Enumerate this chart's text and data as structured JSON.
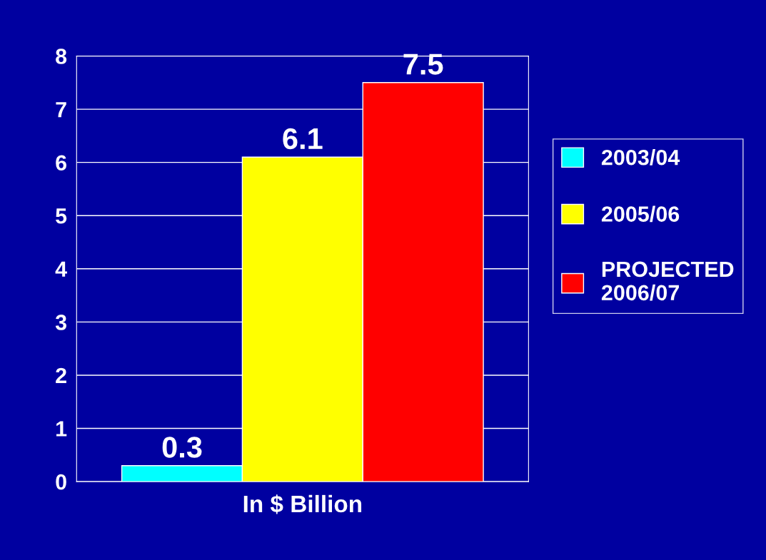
{
  "chart_data": {
    "type": "bar",
    "categories": [
      null
    ],
    "xlabel": "In $ Billion",
    "series": [
      {
        "name": "2003/04",
        "color": "#00ffff",
        "values": [
          0.3
        ]
      },
      {
        "name": "2005/06",
        "color": "#ffff00",
        "values": [
          6.1
        ]
      },
      {
        "name": "PROJECTED\n2006/07",
        "color": "#ff0000",
        "values": [
          7.5
        ]
      }
    ],
    "ylim": [
      0,
      8
    ],
    "yticks": [
      0,
      1,
      2,
      3,
      4,
      5,
      6,
      7,
      8
    ],
    "grid": "y",
    "legend": "right",
    "data_labels": true
  }
}
